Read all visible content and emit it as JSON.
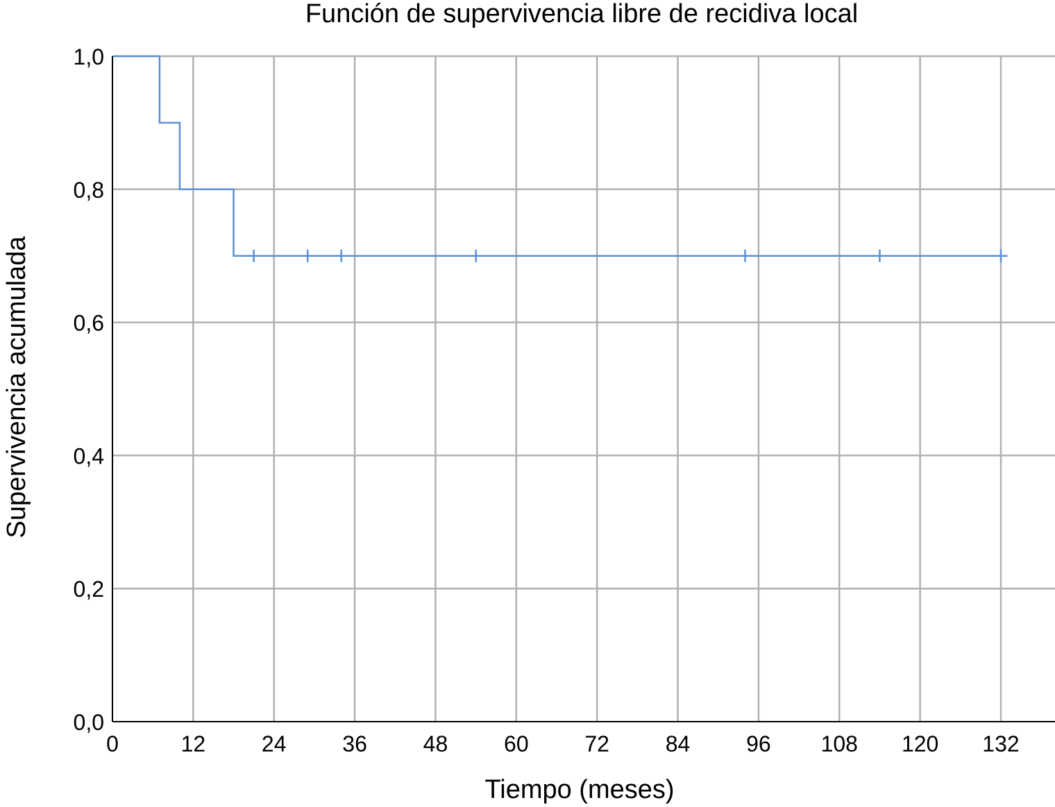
{
  "chart_data": {
    "type": "line",
    "subtype": "kaplan-meier-step",
    "title": "Función de supervivencia libre de recidiva local",
    "xlabel": "Tiempo (meses)",
    "ylabel": "Supervivencia acumulada",
    "xlim": [
      0,
      140
    ],
    "ylim": [
      0,
      1
    ],
    "x_ticks": [
      0,
      12,
      24,
      36,
      48,
      60,
      72,
      84,
      96,
      108,
      120,
      132
    ],
    "x_tick_labels": [
      "0",
      "12",
      "24",
      "36",
      "48",
      "60",
      "72",
      "84",
      "96",
      "108",
      "120",
      "132"
    ],
    "y_ticks": [
      0,
      0.2,
      0.4,
      0.6,
      0.8,
      1.0
    ],
    "y_tick_labels": [
      "0,0",
      "0,2",
      "0,4",
      "0,6",
      "0,8",
      "1,0"
    ],
    "grid": true,
    "series": [
      {
        "color": "#5b8fd6",
        "steps": [
          {
            "x": 0,
            "y": 1.0
          },
          {
            "x": 7,
            "y": 0.9
          },
          {
            "x": 10,
            "y": 0.8
          },
          {
            "x": 18,
            "y": 0.7
          }
        ],
        "end_x": 133,
        "censored": [
          21,
          29,
          34,
          54,
          94,
          114,
          132
        ]
      }
    ]
  }
}
